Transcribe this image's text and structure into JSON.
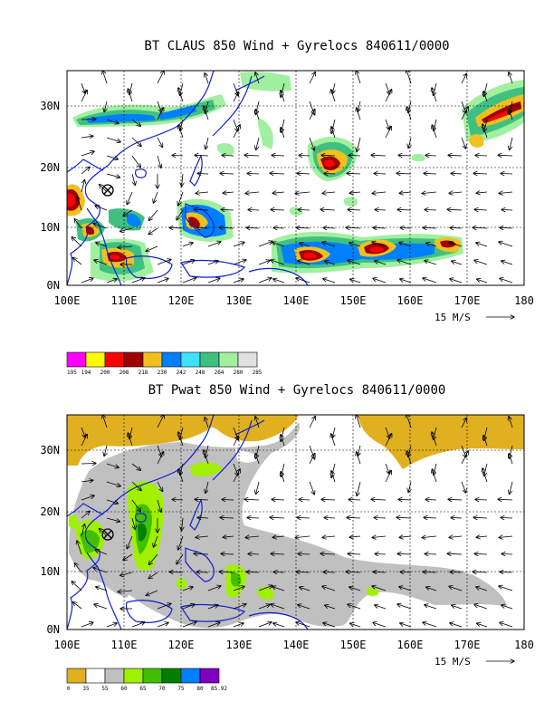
{
  "charts": [
    {
      "title": "BT CLAUS 850 Wind + Gyrelocs 840611/0000",
      "x_ticks": [
        "100E",
        "110E",
        "120E",
        "130E",
        "140E",
        "150E",
        "160E",
        "170E",
        "180"
      ],
      "y_ticks": [
        "0N",
        "10N",
        "20N",
        "30N"
      ],
      "vector_ref": "15 M/S",
      "colorbar_labels": [
        "195",
        "194",
        "200",
        "208",
        "218",
        "230",
        "242",
        "248",
        "264",
        "280",
        "285"
      ],
      "colorbar_colors": [
        "#ff00ff",
        "#ffff00",
        "#ff0000",
        "#a00000",
        "#f0c020",
        "#0080ff",
        "#40e0ff",
        "#40c080",
        "#a0f0a0",
        "#e0e0e0"
      ]
    },
    {
      "title": "BT Pwat 850 Wind + Gyrelocs 840611/0000",
      "x_ticks": [
        "100E",
        "110E",
        "120E",
        "130E",
        "140E",
        "150E",
        "160E",
        "170E",
        "180"
      ],
      "y_ticks": [
        "0N",
        "10N",
        "20N",
        "30N"
      ],
      "vector_ref": "15 M/S",
      "colorbar_labels": [
        "0",
        "35",
        "55",
        "60",
        "65",
        "70",
        "75",
        "80",
        "85.92"
      ],
      "colorbar_colors": [
        "#e0b020",
        "#ffffff",
        "#c0c0c0",
        "#a0f000",
        "#40c000",
        "#008000",
        "#0080ff",
        "#8000c0"
      ]
    }
  ],
  "chart_data": [
    {
      "type": "heatmap",
      "title": "BT CLAUS 850 Wind + Gyrelocs 840611/0000",
      "xlim": [
        "100E",
        "180"
      ],
      "ylim": [
        "0N",
        "35N"
      ],
      "x_ticks": [
        "100E",
        "110E",
        "120E",
        "130E",
        "140E",
        "150E",
        "160E",
        "170E",
        "180"
      ],
      "y_ticks": [
        "0N",
        "10N",
        "20N",
        "30N"
      ],
      "colorbar": [
        "195",
        "194",
        "200",
        "208",
        "218",
        "230",
        "242",
        "248",
        "264",
        "280",
        "285"
      ],
      "storm_center": {
        "lon": 107,
        "lat": 17
      },
      "vector_reference": "15 M/S",
      "grid": true
    },
    {
      "type": "heatmap",
      "title": "BT Pwat 850 Wind + Gyrelocs 840611/0000",
      "xlim": [
        "100E",
        "180"
      ],
      "ylim": [
        "0N",
        "35N"
      ],
      "x_ticks": [
        "100E",
        "110E",
        "120E",
        "130E",
        "140E",
        "150E",
        "160E",
        "170E",
        "180"
      ],
      "y_ticks": [
        "0N",
        "10N",
        "20N",
        "30N"
      ],
      "colorbar": [
        "0",
        "35",
        "55",
        "60",
        "65",
        "70",
        "75",
        "80",
        "85.92"
      ],
      "storm_center": {
        "lon": 107,
        "lat": 17
      },
      "vector_reference": "15 M/S",
      "grid": true
    }
  ]
}
